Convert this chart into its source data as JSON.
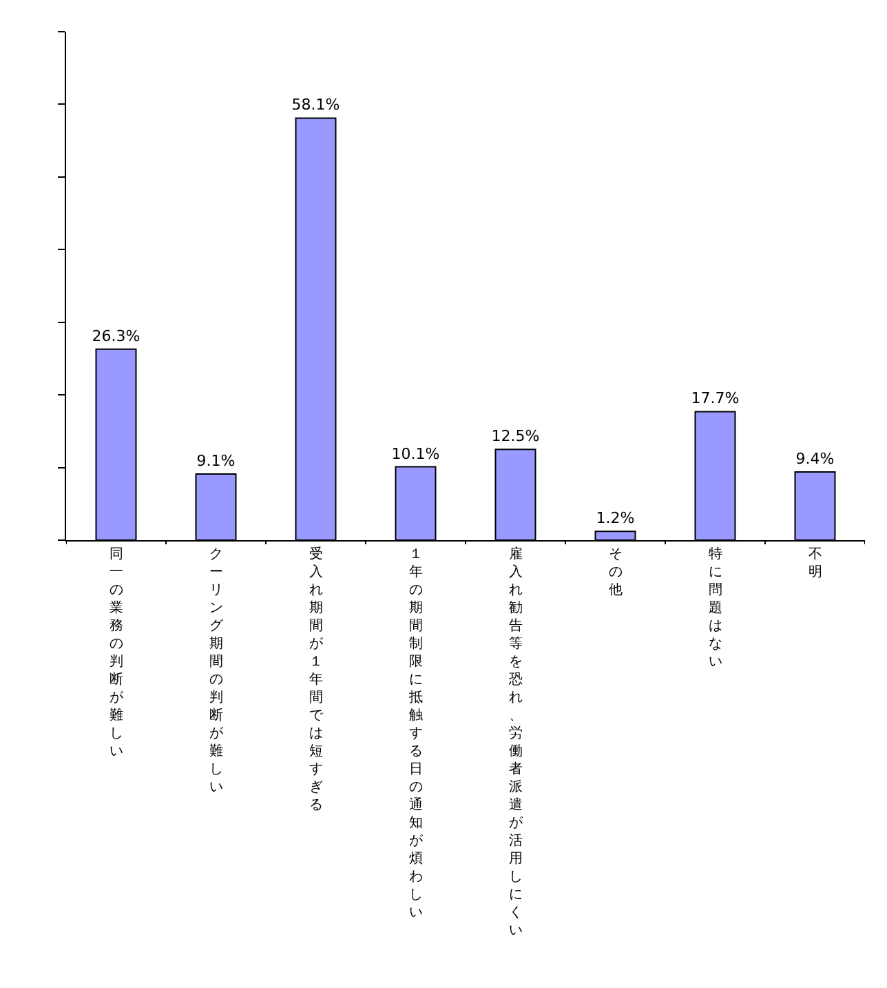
{
  "chart_data": {
    "type": "bar",
    "categories": [
      "同一の業務の判断が難しい",
      "クーリング期間の判断が難しい",
      "受入れ期間が１年間では短すぎる",
      "１年の期間制限に抵触する日の通知が煩わしい",
      "雇入れ勧告等を恐れ、労働者派遣が活用しにくい",
      "その他",
      "特に問題はない",
      "不明"
    ],
    "values": [
      26.3,
      9.1,
      58.1,
      10.1,
      12.5,
      1.2,
      17.7,
      9.4
    ],
    "value_labels": [
      "26.3%",
      "9.1%",
      "58.1%",
      "10.1%",
      "12.5%",
      "1.2%",
      "17.7%",
      "9.4%"
    ],
    "color": "#9999ff",
    "ylim": [
      0,
      70
    ],
    "yticks": [
      {
        "value": 0,
        "label": null
      },
      {
        "value": 10,
        "label": null
      },
      {
        "value": 20,
        "label": null
      },
      {
        "value": 30,
        "label": null
      },
      {
        "value": 40,
        "label": null
      },
      {
        "value": 50,
        "label": null
      },
      {
        "value": 60,
        "label": null
      },
      {
        "value": 70,
        "label": null
      }
    ],
    "tick_labels": "x",
    "legend": false
  }
}
